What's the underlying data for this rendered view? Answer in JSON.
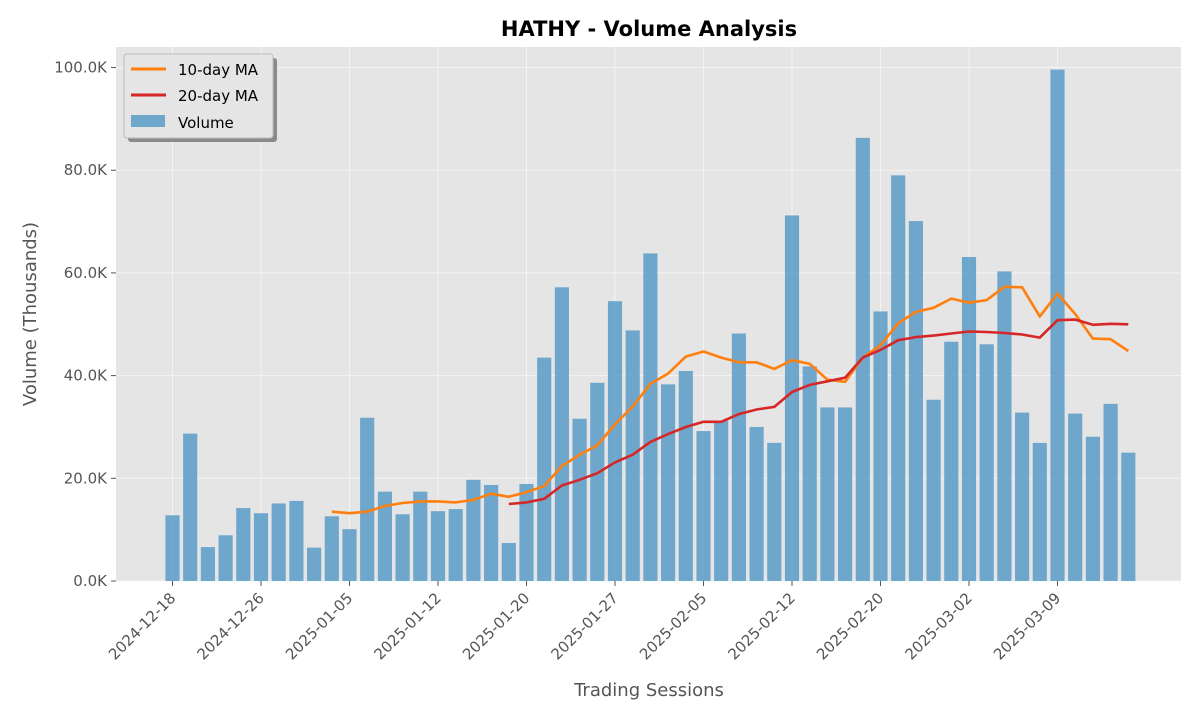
{
  "chart_data": {
    "type": "bar",
    "title": "HATHY - Volume Analysis",
    "xlabel": "Trading Sessions",
    "ylabel": "Volume (Thousands)",
    "ylim": [
      0,
      104000
    ],
    "yticks": [
      0,
      20000,
      40000,
      60000,
      80000,
      100000
    ],
    "ytick_labels": [
      "0.0K",
      "20.0K",
      "40.0K",
      "60.0K",
      "80.0K",
      "100.0K"
    ],
    "xtick_labels": [
      {
        "index": 0,
        "label": "2024-12-18"
      },
      {
        "index": 5,
        "label": "2024-12-26"
      },
      {
        "index": 10,
        "label": "2025-01-05"
      },
      {
        "index": 15,
        "label": "2025-01-12"
      },
      {
        "index": 20,
        "label": "2025-01-20"
      },
      {
        "index": 25,
        "label": "2025-01-27"
      },
      {
        "index": 30,
        "label": "2025-02-05"
      },
      {
        "index": 35,
        "label": "2025-02-12"
      },
      {
        "index": 40,
        "label": "2025-02-20"
      },
      {
        "index": 45,
        "label": "2025-03-02"
      },
      {
        "index": 50,
        "label": "2025-03-09"
      }
    ],
    "grid": true,
    "legend_position": "top-left",
    "series": [
      {
        "name": "Volume",
        "kind": "bar",
        "color": "#5b9bc8",
        "values": [
          12800,
          28700,
          6600,
          8900,
          14200,
          13200,
          15100,
          15600,
          6500,
          12600,
          10100,
          31800,
          17400,
          13000,
          17400,
          13600,
          14000,
          19700,
          18700,
          7400,
          18900,
          43500,
          57200,
          31600,
          38600,
          54500,
          48800,
          63800,
          38300,
          40900,
          29200,
          31200,
          48200,
          30000,
          26900,
          71200,
          41800,
          33800,
          33800,
          86300,
          52500,
          79000,
          70100,
          35300,
          46600,
          63100,
          46100,
          60300,
          32800,
          26900,
          99600,
          32600,
          28100,
          34500,
          25000
        ]
      },
      {
        "name": "10-day MA",
        "kind": "line",
        "color": "#ff7f0e",
        "values": [
          null,
          null,
          null,
          null,
          null,
          null,
          null,
          null,
          null,
          13500,
          13200,
          13500,
          14600,
          15200,
          15500,
          15500,
          15300,
          15800,
          17000,
          16400,
          17300,
          18500,
          22400,
          24600,
          26400,
          30500,
          34000,
          38400,
          40400,
          43700,
          44700,
          43500,
          42600,
          42600,
          41300,
          43000,
          42300,
          39200,
          38800,
          43500,
          45900,
          50200,
          52400,
          53200,
          55000,
          54200,
          54700,
          57300,
          57200,
          51500,
          56000,
          52000,
          47200,
          47100,
          44800
        ]
      },
      {
        "name": "20-day MA",
        "kind": "line",
        "color": "#d62728",
        "values": [
          null,
          null,
          null,
          null,
          null,
          null,
          null,
          null,
          null,
          null,
          null,
          null,
          null,
          null,
          null,
          null,
          null,
          null,
          null,
          15000,
          15300,
          16000,
          18600,
          19700,
          21000,
          23100,
          24600,
          27100,
          28600,
          30000,
          31000,
          31000,
          32500,
          33400,
          33900,
          36800,
          38200,
          38900,
          39600,
          43500,
          45000,
          46900,
          47500,
          47800,
          48200,
          48600,
          48500,
          48300,
          48000,
          47400,
          50800,
          50900,
          49900,
          50100,
          50000
        ]
      }
    ]
  }
}
